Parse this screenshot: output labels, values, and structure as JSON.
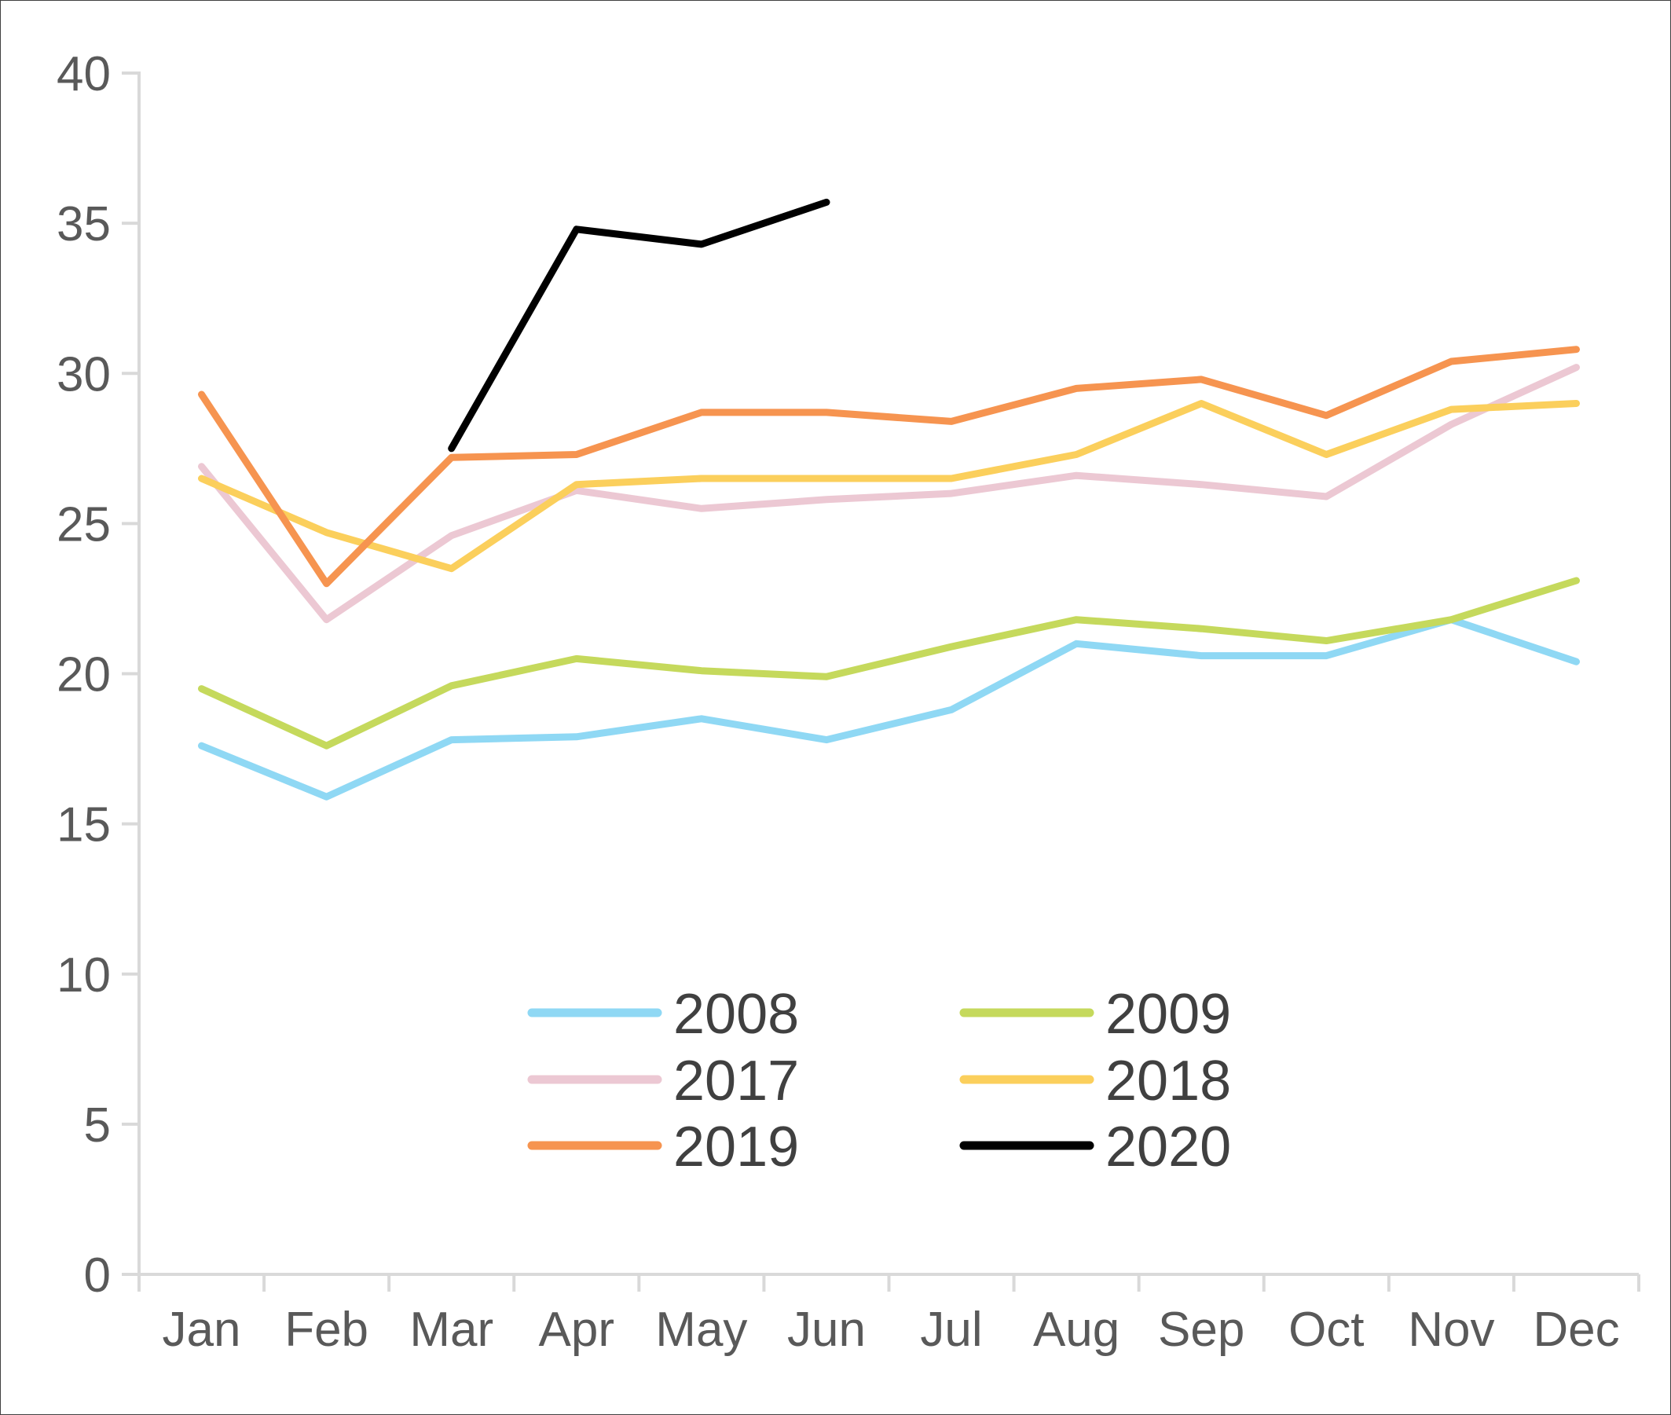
{
  "chart_data": {
    "type": "line",
    "title": "",
    "xlabel": "",
    "ylabel": "",
    "categories": [
      "Jan",
      "Feb",
      "Mar",
      "Apr",
      "May",
      "Jun",
      "Jul",
      "Aug",
      "Sep",
      "Oct",
      "Nov",
      "Dec"
    ],
    "ylim": [
      0,
      40
    ],
    "yticks": [
      0,
      5,
      10,
      15,
      20,
      25,
      30,
      35,
      40
    ],
    "grid": false,
    "legend": "bottom-center",
    "series": [
      {
        "name": "2008",
        "color": "#8fd8f4",
        "values": [
          17.6,
          15.9,
          17.8,
          17.9,
          18.5,
          17.8,
          18.8,
          21.0,
          20.6,
          20.6,
          21.8,
          20.4
        ]
      },
      {
        "name": "2009",
        "color": "#c5d95c",
        "values": [
          19.5,
          17.6,
          19.6,
          20.5,
          20.1,
          19.9,
          20.9,
          21.8,
          21.5,
          21.1,
          21.8,
          23.1
        ]
      },
      {
        "name": "2017",
        "color": "#ecc8d3",
        "values": [
          26.9,
          21.8,
          24.6,
          26.1,
          25.5,
          25.8,
          26.0,
          26.6,
          26.3,
          25.9,
          28.3,
          30.2
        ]
      },
      {
        "name": "2018",
        "color": "#fbcf5c",
        "values": [
          26.5,
          24.7,
          23.5,
          26.3,
          26.5,
          26.5,
          26.5,
          27.3,
          29.0,
          27.3,
          28.8,
          29.0
        ]
      },
      {
        "name": "2019",
        "color": "#f69450",
        "values": [
          29.3,
          23.0,
          27.2,
          27.3,
          28.7,
          28.7,
          28.4,
          29.5,
          29.8,
          28.6,
          30.4,
          30.8
        ]
      },
      {
        "name": "2020",
        "color": "#000000",
        "values": [
          null,
          null,
          27.5,
          34.8,
          34.3,
          35.7,
          null,
          null,
          null,
          null,
          null,
          null
        ]
      }
    ]
  }
}
